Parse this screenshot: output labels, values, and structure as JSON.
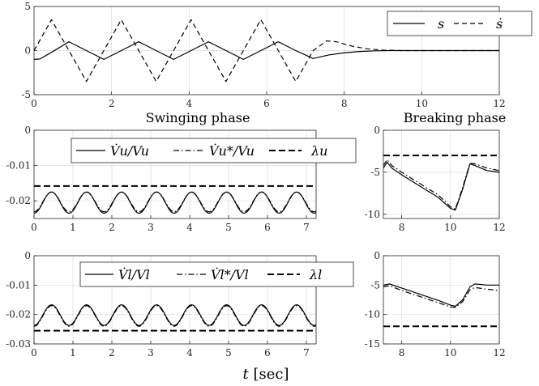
{
  "figure": {
    "panel_titles": {
      "swinging": "Swinging phase",
      "breaking": "Breaking phase"
    },
    "xlabel": {
      "var": "t",
      "unit": "[sec]"
    }
  },
  "legends": {
    "top": [
      {
        "label": "s",
        "style": "solid"
      },
      {
        "label": "ṡ",
        "style": "dashed"
      }
    ],
    "upper": [
      {
        "label": "V̇u/Vu",
        "style": "solid"
      },
      {
        "label": "V̇u*/Vu",
        "style": "dashdot"
      },
      {
        "label": "λu",
        "style": "dashed"
      }
    ],
    "lower": [
      {
        "label": "V̇l/Vl",
        "style": "solid"
      },
      {
        "label": "V̇l*/Vl",
        "style": "dashdot"
      },
      {
        "label": "λl",
        "style": "dashed"
      }
    ]
  },
  "chart_data": [
    {
      "id": "top",
      "type": "line",
      "xlim": [
        0,
        12
      ],
      "ylim": [
        -5,
        5
      ],
      "xticks": [
        "0",
        "2",
        "4",
        "6",
        "8",
        "10",
        "12"
      ],
      "yticks": [
        "5",
        "0",
        "-5"
      ],
      "grid": true,
      "legend_position": "top-right",
      "series": [
        {
          "name": "s",
          "style": "solid",
          "x": [
            0,
            0.15,
            0.45,
            0.9,
            1.35,
            1.8,
            2.25,
            2.7,
            3.15,
            3.6,
            4.05,
            4.5,
            4.95,
            5.4,
            5.85,
            6.3,
            6.75,
            7.2,
            7.6,
            8.0,
            8.4,
            8.8,
            9.2,
            10,
            12
          ],
          "y": [
            -1,
            -0.95,
            -0.2,
            1,
            0,
            -1,
            0,
            1,
            0,
            -1,
            0,
            1,
            0,
            -1,
            0,
            1,
            0,
            -0.9,
            -0.5,
            -0.25,
            -0.1,
            -0.03,
            0,
            0,
            0
          ]
        },
        {
          "name": "ṡ",
          "style": "dashed",
          "x": [
            0,
            0.45,
            0.9,
            1.35,
            1.8,
            2.25,
            2.7,
            3.15,
            3.6,
            4.05,
            4.5,
            4.95,
            5.4,
            5.85,
            6.3,
            6.75,
            7.2,
            7.55,
            7.8,
            8.2,
            8.6,
            9.0,
            9.5,
            10,
            12
          ],
          "y": [
            0,
            3.5,
            0,
            -3.5,
            0,
            3.5,
            0,
            -3.5,
            0,
            3.5,
            0,
            -3.5,
            0,
            3.5,
            0,
            -3.5,
            0,
            1.1,
            1.0,
            0.5,
            0.2,
            0.05,
            0,
            0,
            0
          ]
        }
      ]
    },
    {
      "id": "upper-swinging",
      "type": "line",
      "xlim": [
        0,
        7.25
      ],
      "ylim": [
        -0.025,
        0
      ],
      "xticks": [
        "0",
        "1",
        "2",
        "3",
        "4",
        "5",
        "6",
        "7"
      ],
      "yticks": [
        "0",
        "-0.01",
        "-0.02"
      ],
      "grid": true,
      "legend_position": "top",
      "series": [
        {
          "name": "V̇u/Vu",
          "style": "solid",
          "mean": -0.0205,
          "amplitude": 0.003,
          "period": 0.9,
          "peak_at": 0.45
        },
        {
          "name": "V̇u*/Vu",
          "style": "dashdot",
          "mean": -0.0203,
          "amplitude": 0.0028,
          "period": 0.9,
          "peak_at": 0.45
        },
        {
          "name": "λu",
          "style": "dashed",
          "value": -0.0158
        }
      ]
    },
    {
      "id": "upper-breaking",
      "type": "line",
      "xlim": [
        7.25,
        12
      ],
      "ylim": [
        -10.5,
        0
      ],
      "xticks": [
        "8",
        "10",
        "12"
      ],
      "yticks": [
        "0",
        "-5",
        "-10"
      ],
      "grid": true,
      "series": [
        {
          "name": "V̇u/Vu",
          "style": "solid",
          "x": [
            7.25,
            7.4,
            7.6,
            8.0,
            8.5,
            9.0,
            9.5,
            10.0,
            10.2,
            10.5,
            10.8,
            11.0,
            11.5,
            12.0
          ],
          "y": [
            -4.5,
            -3.8,
            -4.5,
            -5.3,
            -6.2,
            -7.1,
            -8.0,
            -9.3,
            -9.5,
            -7.0,
            -4.0,
            -4.2,
            -4.8,
            -5.0
          ]
        },
        {
          "name": "V̇u*/Vu",
          "style": "dashdot",
          "x": [
            7.25,
            7.4,
            7.6,
            8.0,
            8.5,
            9.0,
            9.5,
            10.0,
            10.2,
            10.5,
            10.8,
            11.0,
            11.5,
            12.0
          ],
          "y": [
            -4.2,
            -3.5,
            -4.2,
            -5.0,
            -5.9,
            -6.8,
            -7.7,
            -9.1,
            -9.4,
            -6.8,
            -3.9,
            -4.0,
            -4.5,
            -4.8
          ]
        },
        {
          "name": "λu",
          "style": "dashed",
          "value": -3.0
        }
      ]
    },
    {
      "id": "lower-swinging",
      "type": "line",
      "xlim": [
        0,
        7.25
      ],
      "ylim": [
        -0.03,
        0
      ],
      "xticks": [
        "0",
        "1",
        "2",
        "3",
        "4",
        "5",
        "6",
        "7"
      ],
      "yticks": [
        "0",
        "-0.01",
        "-0.02",
        "-0.03"
      ],
      "grid": true,
      "legend_position": "top",
      "series": [
        {
          "name": "V̇l/Vl",
          "style": "solid",
          "mean": -0.0202,
          "amplitude": 0.0035,
          "period": 0.9,
          "peak_at": 0.45
        },
        {
          "name": "V̇l*/Vl",
          "style": "dashdot",
          "mean": -0.0205,
          "amplitude": 0.0035,
          "period": 0.9,
          "peak_at": 0.45
        },
        {
          "name": "λl",
          "style": "dashed",
          "value": -0.0255
        }
      ]
    },
    {
      "id": "lower-breaking",
      "type": "line",
      "xlim": [
        7.25,
        12
      ],
      "ylim": [
        -15,
        0
      ],
      "xticks": [
        "8",
        "10",
        "12"
      ],
      "yticks": [
        "0",
        "-5",
        "-10",
        "-15"
      ],
      "grid": true,
      "series": [
        {
          "name": "V̇l/Vl",
          "style": "solid",
          "x": [
            7.25,
            7.5,
            8.0,
            8.5,
            9.0,
            9.5,
            10.0,
            10.2,
            10.5,
            10.8,
            11.0,
            11.5,
            12.0
          ],
          "y": [
            -5.0,
            -4.8,
            -5.5,
            -6.2,
            -6.9,
            -7.6,
            -8.4,
            -8.6,
            -7.5,
            -5.3,
            -4.8,
            -5.0,
            -5.0
          ]
        },
        {
          "name": "V̇l*/Vl",
          "style": "dashdot",
          "x": [
            7.25,
            7.5,
            8.0,
            8.5,
            9.0,
            9.5,
            10.0,
            10.2,
            10.5,
            10.8,
            11.0,
            11.5,
            12.0
          ],
          "y": [
            -5.3,
            -5.1,
            -5.9,
            -6.6,
            -7.3,
            -8.0,
            -8.7,
            -8.8,
            -7.8,
            -5.8,
            -5.4,
            -5.7,
            -5.9
          ]
        },
        {
          "name": "λl",
          "style": "dashed",
          "value": -12.0
        }
      ]
    }
  ]
}
